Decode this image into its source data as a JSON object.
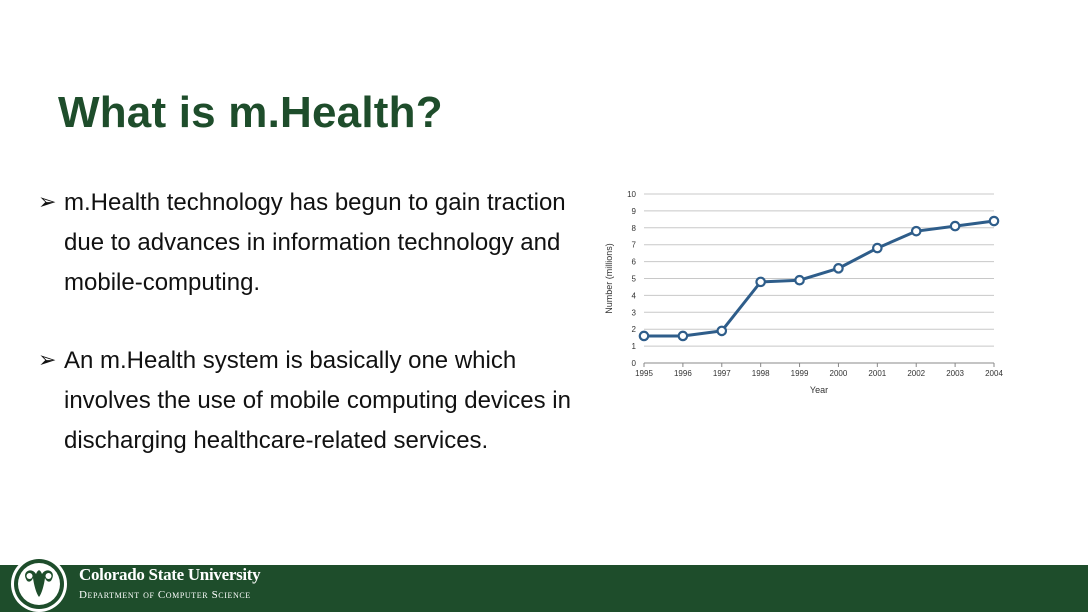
{
  "slide": {
    "title": "What is m.Health?"
  },
  "bullets": [
    {
      "arrow": "➢",
      "text": "m.Health technology has begun to gain traction due to advances in information technology and mobile-computing."
    },
    {
      "arrow": "➢",
      "text": "An m.Health system is basically one which involves the use of mobile computing devices in discharging healthcare-related services."
    }
  ],
  "footer": {
    "university": "Colorado State University",
    "department": "Department of Computer Science",
    "background_color": "#1e4d2b"
  },
  "chart_data": {
    "type": "line",
    "title": "",
    "xlabel": "Year",
    "ylabel": "Number (millions)",
    "x": [
      1995,
      1996,
      1997,
      1998,
      1999,
      2000,
      2001,
      2002,
      2003,
      2004
    ],
    "series": [
      {
        "values": [
          1.6,
          1.6,
          1.9,
          4.8,
          4.9,
          5.6,
          6.8,
          7.8,
          8.1,
          8.4
        ],
        "color": "#2e5d8a"
      }
    ],
    "ylim": [
      0,
      10
    ],
    "yticks": [
      0,
      1,
      2,
      3,
      4,
      5,
      6,
      7,
      8,
      9,
      10
    ],
    "grid": true,
    "legend": "none"
  }
}
